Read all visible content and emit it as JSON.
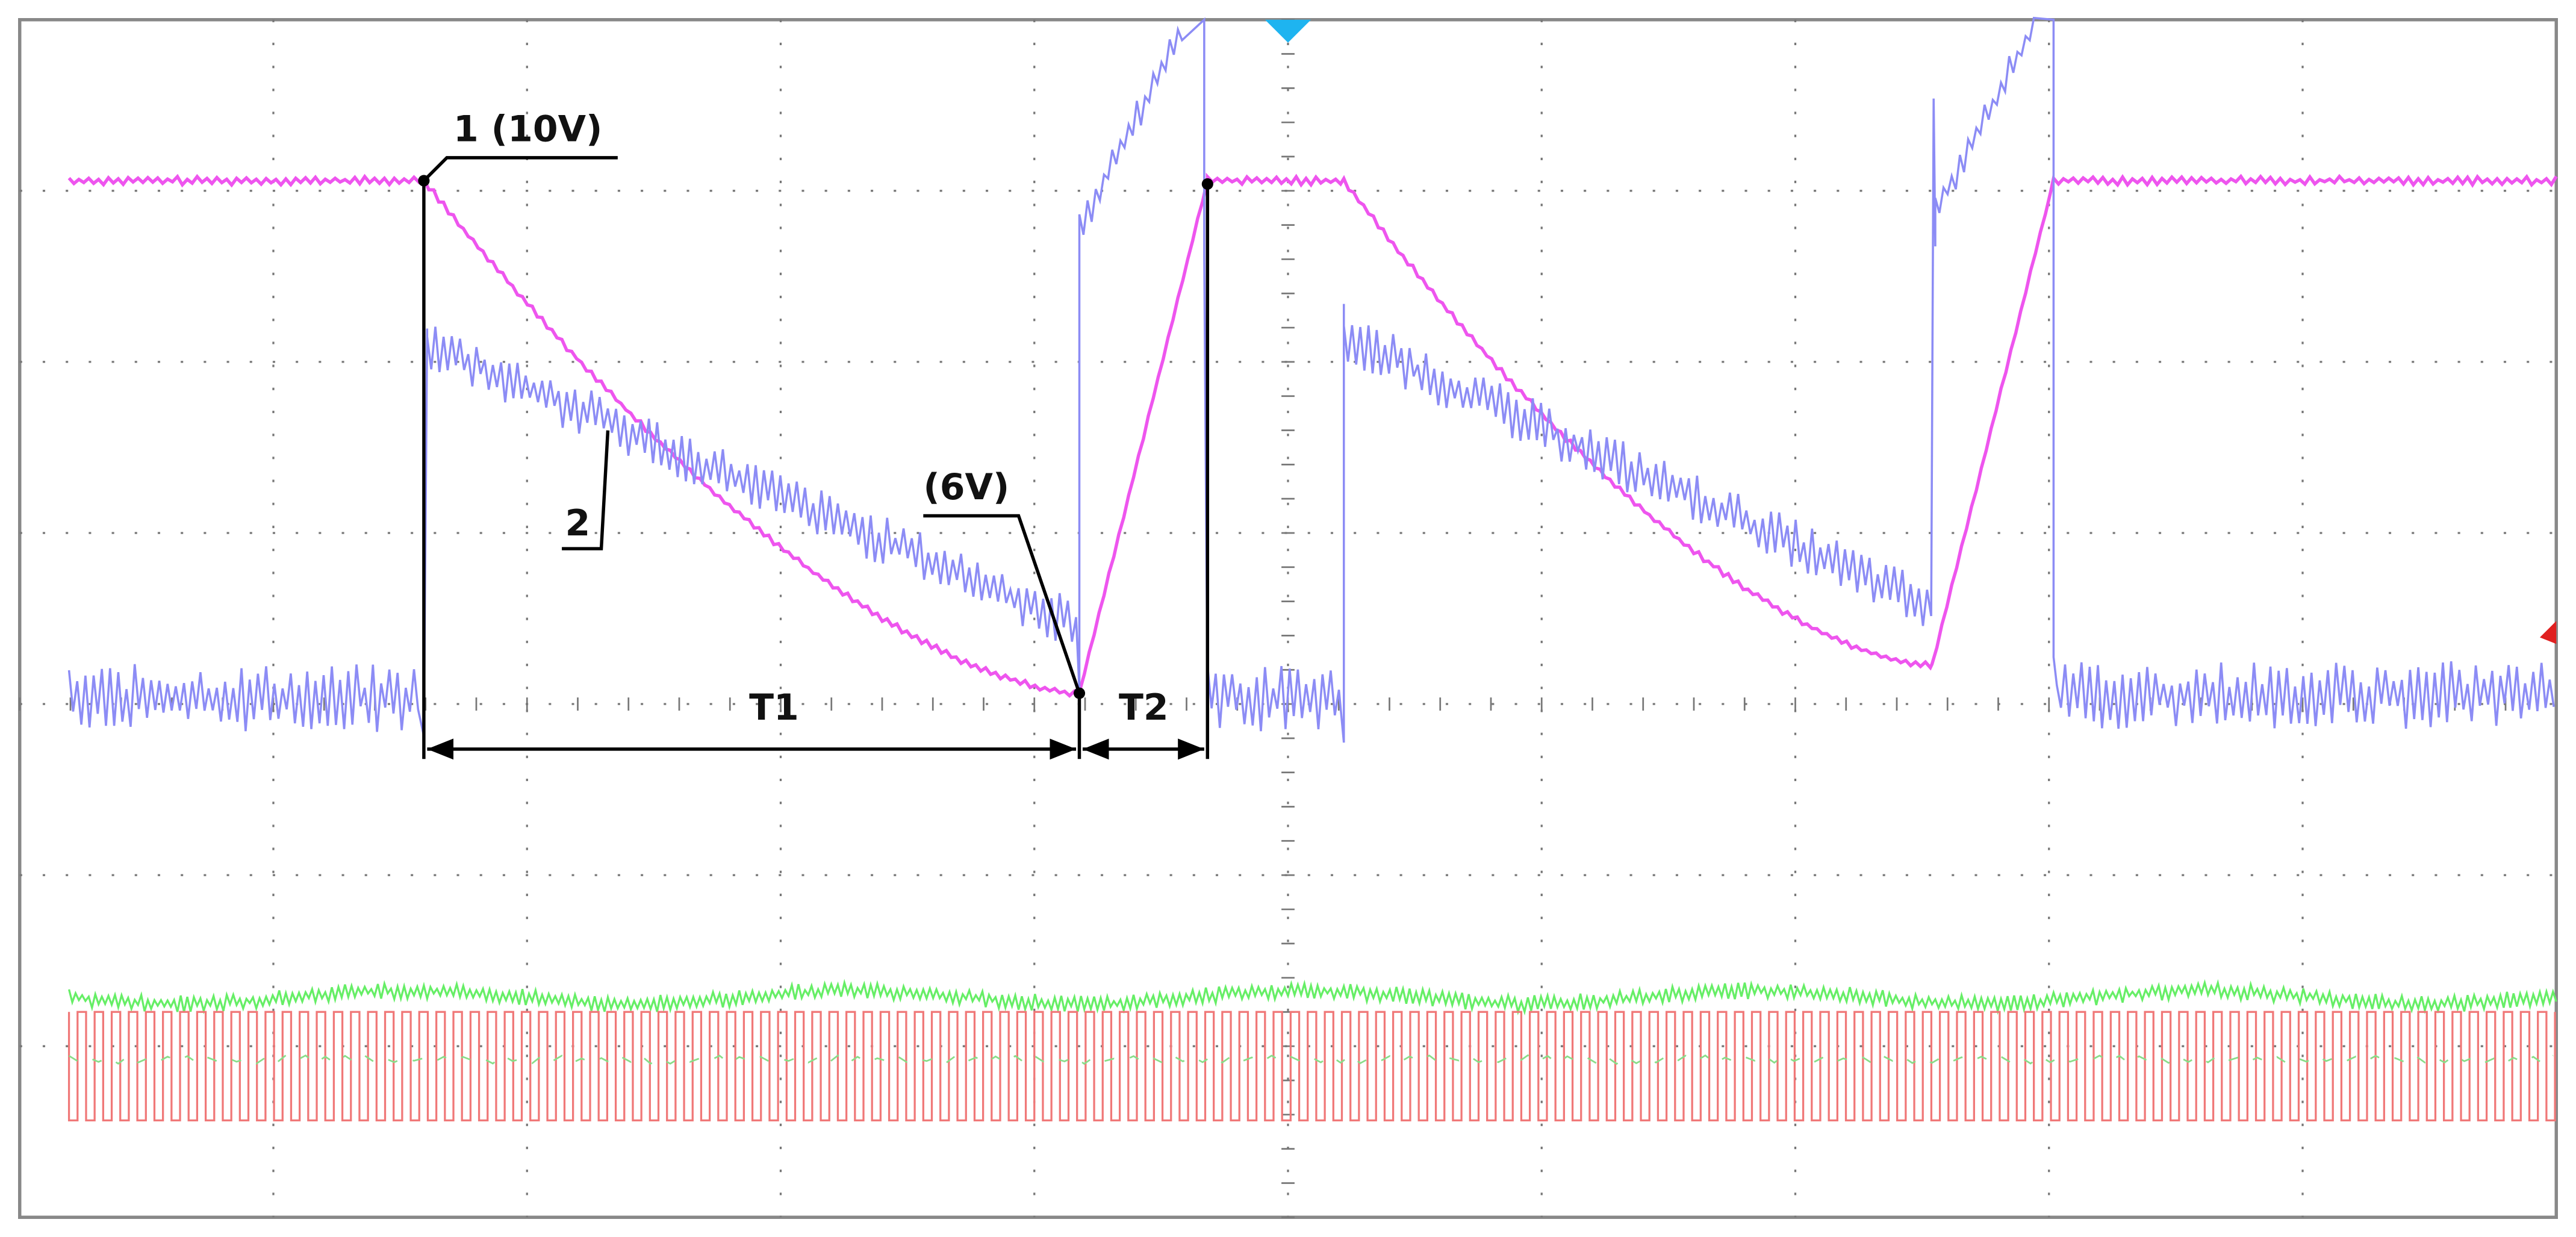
{
  "annotations": {
    "ch1": "1 (10V)",
    "ch2": "2",
    "min_voltage": "(6V)",
    "t1": "T1",
    "t2": "T2"
  }
}
